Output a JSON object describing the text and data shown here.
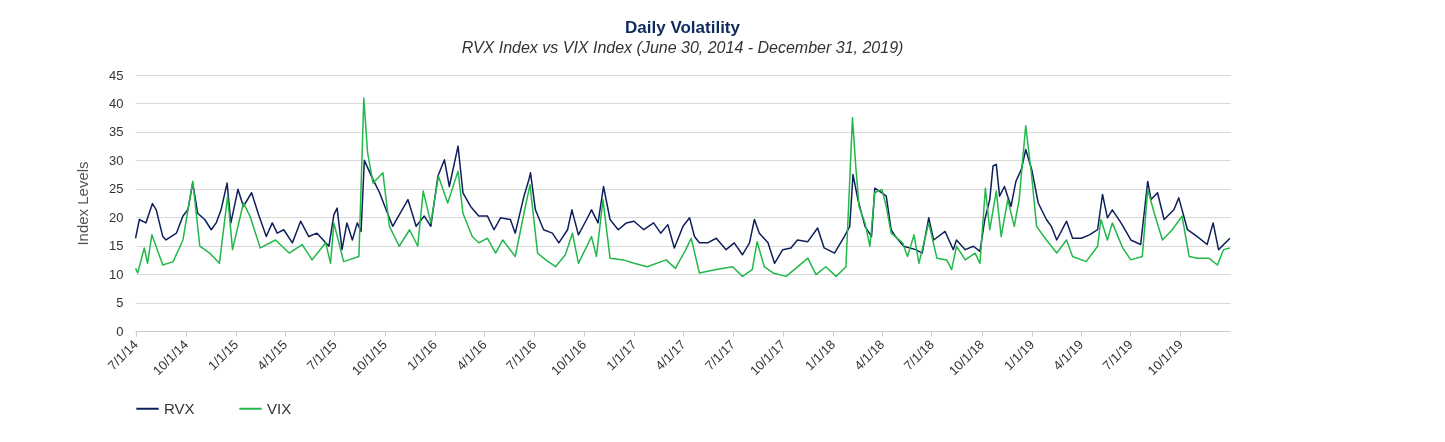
{
  "chart_data": {
    "type": "line",
    "title": "Daily Volatility",
    "subtitle": "RVX Index vs VIX Index (June 30, 2014 - December 31, 2019)",
    "ylabel": "Index Levels",
    "xlim": [
      "2014-06-30",
      "2019-12-31"
    ],
    "xticks": [
      {
        "value": "2014-07-01",
        "label": "7/1/14"
      },
      {
        "value": "2014-10-01",
        "label": "10/1/14"
      },
      {
        "value": "2015-01-01",
        "label": "1/1/15"
      },
      {
        "value": "2015-04-01",
        "label": "4/1/15"
      },
      {
        "value": "2015-07-01",
        "label": "7/1/15"
      },
      {
        "value": "2015-10-01",
        "label": "10/1/15"
      },
      {
        "value": "2016-01-01",
        "label": "1/1/16"
      },
      {
        "value": "2016-04-01",
        "label": "4/1/16"
      },
      {
        "value": "2016-07-01",
        "label": "7/1/16"
      },
      {
        "value": "2016-10-01",
        "label": "10/1/16"
      },
      {
        "value": "2017-01-01",
        "label": "1/1/17"
      },
      {
        "value": "2017-04-01",
        "label": "4/1/17"
      },
      {
        "value": "2017-07-01",
        "label": "7/1/17"
      },
      {
        "value": "2017-10-01",
        "label": "10/1/17"
      },
      {
        "value": "2018-01-01",
        "label": "1/1/18"
      },
      {
        "value": "2018-04-01",
        "label": "4/1/18"
      },
      {
        "value": "2018-07-01",
        "label": "7/1/18"
      },
      {
        "value": "2018-10-01",
        "label": "10/1/18"
      },
      {
        "value": "2019-01-01",
        "label": "1/1/19"
      },
      {
        "value": "2019-04-01",
        "label": "4/1/19"
      },
      {
        "value": "2019-07-01",
        "label": "7/1/19"
      },
      {
        "value": "2019-10-01",
        "label": "10/1/19"
      }
    ],
    "ylim": [
      0,
      45
    ],
    "yticks": [
      0,
      5,
      10,
      15,
      20,
      25,
      30,
      35,
      40,
      45
    ],
    "grid": "y",
    "legend": "bottom",
    "marker": "none",
    "line_style": "solid",
    "series": [
      {
        "name": "RVX",
        "color": "#0f1f5c",
        "x": [
          "2014-07-01",
          "2014-07-08",
          "2014-07-20",
          "2014-08-01",
          "2014-08-08",
          "2014-08-20",
          "2014-08-26",
          "2014-09-14",
          "2014-09-26",
          "2014-10-05",
          "2014-10-14",
          "2014-10-23",
          "2014-11-05",
          "2014-11-17",
          "2014-11-26",
          "2014-12-05",
          "2014-12-16",
          "2014-12-23",
          "2015-01-05",
          "2015-01-15",
          "2015-01-30",
          "2015-02-11",
          "2015-02-26",
          "2015-03-09",
          "2015-03-18",
          "2015-03-30",
          "2015-04-15",
          "2015-04-30",
          "2015-05-15",
          "2015-05-30",
          "2015-06-21",
          "2015-06-30",
          "2015-07-06",
          "2015-07-15",
          "2015-07-24",
          "2015-08-03",
          "2015-08-12",
          "2015-08-19",
          "2015-08-25",
          "2015-09-10",
          "2015-09-22",
          "2015-10-04",
          "2015-10-16",
          "2015-11-13",
          "2015-11-28",
          "2015-12-13",
          "2015-12-25",
          "2016-01-07",
          "2016-01-19",
          "2016-01-28",
          "2016-02-13",
          "2016-02-22",
          "2016-03-07",
          "2016-03-22",
          "2016-04-07",
          "2016-04-19",
          "2016-05-01",
          "2016-05-19",
          "2016-05-28",
          "2016-06-13",
          "2016-06-22",
          "2016-06-25",
          "2016-07-04",
          "2016-07-19",
          "2016-08-04",
          "2016-08-16",
          "2016-09-01",
          "2016-09-09",
          "2016-09-21",
          "2016-10-06",
          "2016-10-15",
          "2016-10-27",
          "2016-11-06",
          "2016-11-18",
          "2016-12-03",
          "2016-12-18",
          "2017-01-01",
          "2017-01-19",
          "2017-02-06",
          "2017-02-19",
          "2017-03-04",
          "2017-03-16",
          "2017-04-01",
          "2017-04-13",
          "2017-04-22",
          "2017-05-01",
          "2017-05-16",
          "2017-06-01",
          "2017-06-19",
          "2017-07-04",
          "2017-07-19",
          "2017-08-01",
          "2017-08-10",
          "2017-08-19",
          "2017-09-04",
          "2017-09-16",
          "2017-10-01",
          "2017-10-16",
          "2017-10-28",
          "2017-11-16",
          "2017-12-04",
          "2017-12-16",
          "2018-01-04",
          "2018-01-22",
          "2018-02-01",
          "2018-02-07",
          "2018-02-16",
          "2018-03-01",
          "2018-03-13",
          "2018-03-19",
          "2018-04-01",
          "2018-04-09",
          "2018-04-18",
          "2018-04-26",
          "2018-05-11",
          "2018-06-02",
          "2018-06-14",
          "2018-06-26",
          "2018-07-05",
          "2018-07-26",
          "2018-08-10",
          "2018-08-16",
          "2018-09-01",
          "2018-09-16",
          "2018-09-28",
          "2018-10-07",
          "2018-10-16",
          "2018-10-22",
          "2018-10-28",
          "2018-11-03",
          "2018-11-12",
          "2018-11-24",
          "2018-12-03",
          "2018-12-13",
          "2018-12-21",
          "2019-01-01",
          "2019-01-13",
          "2019-01-28",
          "2019-02-06",
          "2019-02-16",
          "2019-03-06",
          "2019-03-17",
          "2019-04-02",
          "2019-04-17",
          "2019-05-02",
          "2019-05-11",
          "2019-05-20",
          "2019-05-29",
          "2019-06-14",
          "2019-07-02",
          "2019-07-20",
          "2019-08-02",
          "2019-08-08",
          "2019-08-20",
          "2019-09-01",
          "2019-09-19",
          "2019-09-28",
          "2019-10-14",
          "2019-11-01",
          "2019-11-19",
          "2019-11-30",
          "2019-12-10",
          "2019-12-31"
        ],
        "values": [
          16.3,
          19.6,
          19,
          22.4,
          21.3,
          16.6,
          16,
          17.2,
          20.2,
          21.3,
          26,
          20.7,
          19.6,
          17.8,
          19,
          21.3,
          26,
          19,
          24.9,
          21.9,
          24.3,
          20.7,
          16.6,
          19,
          17.2,
          17.8,
          15.5,
          19.3,
          16.6,
          17.2,
          14.9,
          20.4,
          21.6,
          14.3,
          19,
          16,
          19,
          17.5,
          30,
          26.6,
          24.3,
          21.3,
          18.4,
          23.1,
          18.4,
          20.2,
          18.4,
          27.2,
          30.1,
          25.4,
          32.5,
          24.3,
          21.9,
          20.2,
          20.2,
          17.8,
          19.9,
          19.6,
          17.2,
          23.7,
          26.6,
          27.8,
          21.3,
          17.8,
          17.2,
          15.5,
          17.8,
          21.3,
          16.9,
          19.6,
          21.3,
          19,
          25.4,
          19.6,
          17.8,
          19,
          19.3,
          17.8,
          19,
          17.2,
          18.7,
          14.6,
          18.4,
          19.9,
          16.6,
          15.5,
          15.5,
          16.3,
          14.3,
          15.5,
          13.4,
          15.5,
          19.6,
          17.2,
          15.5,
          11.9,
          14.3,
          14.6,
          16,
          15.7,
          18.1,
          14.6,
          13.7,
          16.6,
          18.4,
          27.5,
          23.1,
          18.4,
          16.6,
          25.1,
          24.3,
          23.7,
          17.8,
          16.6,
          14.9,
          14.3,
          13.7,
          19.9,
          16,
          17.5,
          14.3,
          16,
          14.3,
          14.9,
          14,
          19.6,
          23.1,
          29,
          29.3,
          23.7,
          25.4,
          21.9,
          26.3,
          28.4,
          31.9,
          28.4,
          22.5,
          19.6,
          18.4,
          16,
          19.3,
          16.3,
          16.3,
          16.9,
          17.8,
          24,
          19.9,
          21.3,
          19,
          16,
          15.2,
          26.3,
          23.1,
          24.3,
          19.6,
          21.3,
          23.4,
          17.8,
          16.6,
          15.2,
          19,
          14.3,
          16.3
        ]
      },
      {
        "name": "VIX",
        "color": "#22b84a",
        "x": [
          "2014-07-01",
          "2014-07-05",
          "2014-07-17",
          "2014-07-23",
          "2014-07-31",
          "2014-08-20",
          "2014-09-08",
          "2014-09-26",
          "2014-10-14",
          "2014-10-27",
          "2014-11-14",
          "2014-12-02",
          "2014-12-17",
          "2014-12-26",
          "2015-01-15",
          "2015-01-27",
          "2015-02-15",
          "2015-03-15",
          "2015-04-09",
          "2015-05-03",
          "2015-05-21",
          "2015-06-15",
          "2015-06-24",
          "2015-06-30",
          "2015-07-18",
          "2015-08-15",
          "2015-08-24",
          "2015-08-31",
          "2015-09-10",
          "2015-09-28",
          "2015-10-10",
          "2015-10-28",
          "2015-11-16",
          "2015-12-01",
          "2015-12-11",
          "2015-12-25",
          "2016-01-08",
          "2016-01-25",
          "2016-02-13",
          "2016-02-22",
          "2016-03-10",
          "2016-03-22",
          "2016-04-07",
          "2016-04-22",
          "2016-05-05",
          "2016-05-28",
          "2016-06-13",
          "2016-06-24",
          "2016-07-08",
          "2016-07-23",
          "2016-08-10",
          "2016-08-28",
          "2016-09-10",
          "2016-09-21",
          "2016-10-15",
          "2016-10-24",
          "2016-11-05",
          "2016-11-18",
          "2016-12-12",
          "2017-01-01",
          "2017-01-25",
          "2017-03-01",
          "2017-03-18",
          "2017-04-06",
          "2017-04-16",
          "2017-05-01",
          "2017-06-01",
          "2017-07-01",
          "2017-07-19",
          "2017-08-06",
          "2017-08-15",
          "2017-08-28",
          "2017-09-13",
          "2017-10-07",
          "2017-10-25",
          "2017-11-16",
          "2017-12-01",
          "2017-12-19",
          "2018-01-07",
          "2018-01-25",
          "2018-02-06",
          "2018-02-12",
          "2018-02-18",
          "2018-03-01",
          "2018-03-10",
          "2018-03-19",
          "2018-04-01",
          "2018-04-09",
          "2018-04-18",
          "2018-05-09",
          "2018-05-18",
          "2018-05-30",
          "2018-06-08",
          "2018-06-26",
          "2018-07-11",
          "2018-07-29",
          "2018-08-07",
          "2018-08-16",
          "2018-09-01",
          "2018-09-19",
          "2018-09-28",
          "2018-10-08",
          "2018-10-16",
          "2018-10-28",
          "2018-11-06",
          "2018-11-18",
          "2018-11-30",
          "2018-12-09",
          "2018-12-21",
          "2019-01-01",
          "2019-01-10",
          "2019-01-28",
          "2019-02-16",
          "2019-03-06",
          "2019-03-17",
          "2019-04-11",
          "2019-05-02",
          "2019-05-08",
          "2019-05-20",
          "2019-05-29",
          "2019-06-17",
          "2019-07-02",
          "2019-07-23",
          "2019-08-02",
          "2019-08-14",
          "2019-08-29",
          "2019-09-16",
          "2019-10-04",
          "2019-10-17",
          "2019-11-01",
          "2019-11-22",
          "2019-12-08",
          "2019-12-19",
          "2019-12-31"
        ],
        "values": [
          11,
          10.2,
          14.6,
          11.9,
          16.9,
          11.6,
          12.2,
          16,
          26.3,
          14.9,
          13.7,
          11.9,
          23.7,
          14.3,
          22.5,
          20.2,
          14.6,
          16,
          13.7,
          15.2,
          12.5,
          15.5,
          11.9,
          19,
          12.2,
          13.1,
          40.9,
          31.3,
          26,
          27.8,
          18.4,
          14.9,
          17.8,
          14.9,
          24.6,
          19,
          27.2,
          22.5,
          28.1,
          20.7,
          16.6,
          15.5,
          16.3,
          13.7,
          16,
          13.1,
          20.7,
          25.7,
          13.7,
          12.5,
          11.3,
          13.4,
          17.2,
          11.9,
          16.6,
          13.1,
          23.1,
          12.8,
          12.5,
          11.9,
          11.3,
          12.5,
          11,
          14.3,
          16.3,
          10.2,
          10.8,
          11.3,
          9.6,
          10.8,
          15.7,
          11.3,
          10.2,
          9.6,
          11,
          12.8,
          9.9,
          11.3,
          9.6,
          11.3,
          37.5,
          29,
          21.9,
          19,
          14.9,
          24.3,
          24.9,
          21.9,
          17.2,
          15.5,
          13.1,
          16.9,
          11.9,
          19,
          12.8,
          12.5,
          10.8,
          14.9,
          12.5,
          13.7,
          11.9,
          25.1,
          17.8,
          24.6,
          16.6,
          23.1,
          18.4,
          23.1,
          36.1,
          27.2,
          18.4,
          16,
          13.7,
          16,
          13.1,
          12.2,
          14.9,
          19.6,
          16,
          19,
          14.6,
          12.5,
          13.1,
          24.9,
          20.7,
          16,
          17.8,
          20.2,
          13.1,
          12.8,
          12.8,
          11.6,
          14.3,
          14.6
        ]
      }
    ]
  }
}
